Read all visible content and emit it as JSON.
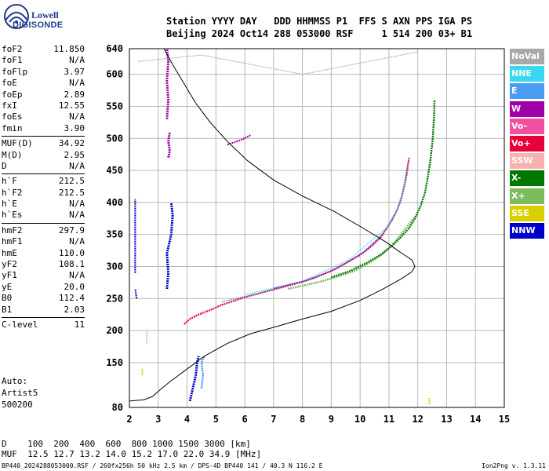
{
  "logo": {
    "line1": "Lowell",
    "line2": "DIGISONDE"
  },
  "header": {
    "labels": "Station YYYY DAY   DDD HHMMSS P1  FFS S AXN PPS IGA PS",
    "values": "Beijing 2024 Oct14 288 053000 RSF     1 514 200 03+ B1"
  },
  "params": [
    {
      "label": "foF2",
      "value": "11.850"
    },
    {
      "label": "foF1",
      "value": "N/A"
    },
    {
      "label": "foFlp",
      "value": "3.97"
    },
    {
      "label": "foE",
      "value": "N/A"
    },
    {
      "label": "foEp",
      "value": "2.89"
    },
    {
      "label": "fxI",
      "value": "12.55"
    },
    {
      "label": "foEs",
      "value": "N/A"
    },
    {
      "label": "fmin",
      "value": "3.90"
    },
    {
      "label": "MUF(D)",
      "value": "34.92",
      "sep": true
    },
    {
      "label": "M(D)",
      "value": "2.95"
    },
    {
      "label": "D",
      "value": "N/A"
    },
    {
      "label": "h`F",
      "value": "212.5",
      "sep": true
    },
    {
      "label": "h`F2",
      "value": "212.5"
    },
    {
      "label": "h`E",
      "value": "N/A"
    },
    {
      "label": "h`Es",
      "value": "N/A"
    },
    {
      "label": "hmF2",
      "value": "297.9",
      "sep": true
    },
    {
      "label": "hmF1",
      "value": "N/A"
    },
    {
      "label": "hmE",
      "value": "110.0"
    },
    {
      "label": "yF2",
      "value": "108.1"
    },
    {
      "label": "yF1",
      "value": "N/A"
    },
    {
      "label": "yE",
      "value": "20.0"
    },
    {
      "label": "B0",
      "value": "112.4"
    },
    {
      "label": "B1",
      "value": "2.03"
    },
    {
      "label": "C-level",
      "value": "11",
      "sep": true
    }
  ],
  "auto": {
    "line1": "Auto:",
    "line2": "Artist5",
    "line3": "500200"
  },
  "legend": [
    {
      "label": "NoVal",
      "color": "#a8a8a8"
    },
    {
      "label": "NNE",
      "color": "#38d8f0"
    },
    {
      "label": "E",
      "color": "#4a9cf0"
    },
    {
      "label": "W",
      "color": "#a000a8"
    },
    {
      "label": "Vo-",
      "color": "#f050a0"
    },
    {
      "label": "Vo+",
      "color": "#e8003a"
    },
    {
      "label": "SSW",
      "color": "#f8b0b0"
    },
    {
      "label": "X-",
      "color": "#007800"
    },
    {
      "label": "X+",
      "color": "#7cbc5a"
    },
    {
      "label": "SSE",
      "color": "#d8d000"
    },
    {
      "label": "NNW",
      "color": "#0000c8"
    }
  ],
  "dtable": {
    "row1": "D    100  200  400  600  800 1000 1500 3000 [km]",
    "row2": "MUF  12.5 12.7 13.2 14.0 15.2 17.0 22.0 34.9 [MHz]"
  },
  "footer": {
    "left": "BP440_2024288053000.RSF / 260fx256h 50 kHz 2.5 km / DPS-4D BP440 141 / 40.3 N 116.2 E",
    "right": "Ion2Png v. 1.3.11"
  },
  "chart_data": {
    "type": "scatter",
    "xlim": [
      2,
      15
    ],
    "ylim": [
      80,
      640
    ],
    "xticks": [
      2,
      3,
      4,
      5,
      6,
      7,
      8,
      9,
      10,
      11,
      12,
      13,
      14,
      15
    ],
    "yticks": [
      80,
      150,
      200,
      250,
      300,
      350,
      400,
      450,
      500,
      550,
      600,
      640
    ],
    "grid": true,
    "series": [
      {
        "name": "Vo+",
        "color": "#e8003a",
        "width": 2.2,
        "points": [
          [
            3.9,
            210
          ],
          [
            4.1,
            218
          ],
          [
            4.4,
            225
          ],
          [
            4.8,
            232
          ],
          [
            5.2,
            240
          ],
          [
            5.6,
            246
          ],
          [
            6.0,
            252
          ],
          [
            6.5,
            258
          ],
          [
            7.0,
            264
          ],
          [
            7.5,
            270
          ],
          [
            8.0,
            276
          ],
          [
            8.5,
            284
          ],
          [
            9.0,
            293
          ],
          [
            9.5,
            305
          ],
          [
            10.0,
            318
          ],
          [
            10.4,
            332
          ],
          [
            10.7,
            345
          ],
          [
            10.9,
            358
          ],
          [
            11.1,
            372
          ],
          [
            11.3,
            390
          ],
          [
            11.45,
            410
          ],
          [
            11.6,
            440
          ],
          [
            11.7,
            470
          ]
        ]
      },
      {
        "name": "E",
        "color": "#4a9cf0",
        "width": 1.3,
        "points": [
          [
            5.2,
            245
          ],
          [
            6.2,
            255
          ],
          [
            7.3,
            268
          ],
          [
            8.4,
            281
          ],
          [
            9.3,
            300
          ],
          [
            10.1,
            322
          ],
          [
            10.8,
            352
          ],
          [
            11.2,
            380
          ],
          [
            11.4,
            400
          ],
          [
            11.55,
            430
          ],
          [
            11.65,
            460
          ]
        ]
      },
      {
        "name": "NNE",
        "color": "#38d8f0",
        "width": 1,
        "points": [
          [
            6.0,
            256
          ],
          [
            8.0,
            277
          ],
          [
            9.6,
            310
          ],
          [
            10.9,
            360
          ],
          [
            11.3,
            390
          ],
          [
            11.5,
            420
          ],
          [
            11.6,
            450
          ]
        ]
      },
      {
        "name": "W",
        "color": "#a000a8",
        "width": 1,
        "points": [
          [
            7.0,
            266
          ],
          [
            8.2,
            279
          ],
          [
            9.2,
            297
          ],
          [
            10.2,
            324
          ],
          [
            10.8,
            350
          ]
        ]
      },
      {
        "name": "X+",
        "color": "#7cbc5a",
        "width": 2.4,
        "points": [
          [
            7.5,
            265
          ],
          [
            8.0,
            270
          ],
          [
            8.6,
            276
          ],
          [
            9.2,
            284
          ],
          [
            9.8,
            293
          ],
          [
            10.3,
            305
          ],
          [
            10.8,
            320
          ],
          [
            11.2,
            338
          ],
          [
            11.5,
            355
          ],
          [
            11.8,
            372
          ],
          [
            12.0,
            382
          ]
        ]
      },
      {
        "name": "X-",
        "color": "#007800",
        "width": 2.4,
        "points": [
          [
            9.0,
            283
          ],
          [
            9.6,
            292
          ],
          [
            10.2,
            305
          ],
          [
            10.7,
            318
          ],
          [
            11.1,
            332
          ],
          [
            11.4,
            345
          ],
          [
            11.7,
            360
          ],
          [
            11.9,
            375
          ],
          [
            12.1,
            395
          ],
          [
            12.25,
            415
          ],
          [
            12.35,
            440
          ],
          [
            12.45,
            470
          ],
          [
            12.52,
            500
          ],
          [
            12.56,
            530
          ],
          [
            12.58,
            560
          ]
        ]
      },
      {
        "name": "W",
        "color": "#a000a8",
        "width": 3,
        "points": [
          [
            3.3,
            530
          ],
          [
            3.35,
            560
          ],
          [
            3.3,
            590
          ],
          [
            3.35,
            620
          ],
          [
            3.3,
            640
          ]
        ]
      },
      {
        "name": "W",
        "color": "#a000a8",
        "width": 3,
        "points": [
          [
            3.35,
            470
          ],
          [
            3.4,
            480
          ],
          [
            3.35,
            495
          ],
          [
            3.4,
            510
          ]
        ]
      },
      {
        "name": "NNW",
        "color": "#0000c8",
        "width": 3,
        "points": [
          [
            3.3,
            265
          ],
          [
            3.35,
            290
          ],
          [
            3.3,
            320
          ],
          [
            3.45,
            350
          ],
          [
            3.5,
            380
          ],
          [
            3.45,
            400
          ]
        ]
      },
      {
        "name": "NNW",
        "color": "#0000c8",
        "width": 3,
        "points": [
          [
            4.1,
            90
          ],
          [
            4.2,
            110
          ],
          [
            4.3,
            130
          ],
          [
            4.35,
            150
          ],
          [
            4.4,
            160
          ]
        ]
      },
      {
        "name": "E",
        "color": "#4a9cf0",
        "width": 2.5,
        "points": [
          [
            4.5,
            110
          ],
          [
            4.55,
            130
          ],
          [
            4.5,
            150
          ],
          [
            4.6,
            160
          ]
        ]
      },
      {
        "name": "NNW",
        "color": "#0000c8",
        "width": 2,
        "points": [
          [
            2.2,
            290
          ],
          [
            2.2,
            320
          ],
          [
            2.2,
            350
          ],
          [
            2.2,
            380
          ],
          [
            2.2,
            405
          ]
        ]
      },
      {
        "name": "NNW",
        "color": "#0000c8",
        "width": 2,
        "points": [
          [
            2.25,
            250
          ],
          [
            2.2,
            265
          ]
        ]
      },
      {
        "name": "W",
        "color": "#a000a8",
        "width": 2,
        "points": [
          [
            5.4,
            490
          ],
          [
            5.7,
            495
          ],
          [
            5.9,
            498
          ],
          [
            6.2,
            505
          ]
        ]
      },
      {
        "name": "NoVal",
        "color": "#a8a8a8",
        "width": 1,
        "points": [
          [
            2.3,
            620
          ],
          [
            4.5,
            630
          ],
          [
            8.0,
            600
          ],
          [
            12.0,
            635
          ]
        ]
      },
      {
        "name": "SSE",
        "color": "#d8d000",
        "width": 2,
        "points": [
          [
            2.45,
            130
          ],
          [
            2.45,
            140
          ]
        ]
      },
      {
        "name": "SSE",
        "color": "#d8d000",
        "width": 2,
        "points": [
          [
            12.4,
            85
          ],
          [
            12.4,
            95
          ]
        ]
      },
      {
        "name": "SSW",
        "color": "#f8b0b0",
        "width": 2,
        "points": [
          [
            2.6,
            180
          ],
          [
            2.6,
            200
          ]
        ]
      }
    ],
    "profile_line": {
      "color": "#000000",
      "width": 1,
      "points": [
        [
          2.0,
          90
        ],
        [
          2.5,
          92
        ],
        [
          2.8,
          97
        ],
        [
          3.0,
          105
        ],
        [
          3.4,
          120
        ],
        [
          4.0,
          140
        ],
        [
          4.6,
          160
        ],
        [
          5.4,
          180
        ],
        [
          6.2,
          195
        ],
        [
          7.0,
          205
        ],
        [
          8.0,
          218
        ],
        [
          9.0,
          230
        ],
        [
          10.0,
          247
        ],
        [
          10.8,
          265
        ],
        [
          11.4,
          280
        ],
        [
          11.8,
          292
        ],
        [
          11.9,
          300
        ],
        [
          11.8,
          310
        ],
        [
          11.4,
          322
        ],
        [
          10.9,
          338
        ],
        [
          10.1,
          360
        ],
        [
          9.1,
          386
        ],
        [
          8.0,
          410
        ],
        [
          7.0,
          435
        ],
        [
          6.1,
          465
        ],
        [
          5.4,
          495
        ],
        [
          4.8,
          525
        ],
        [
          4.3,
          555
        ],
        [
          3.9,
          585
        ],
        [
          3.5,
          615
        ],
        [
          3.2,
          640
        ]
      ]
    }
  }
}
